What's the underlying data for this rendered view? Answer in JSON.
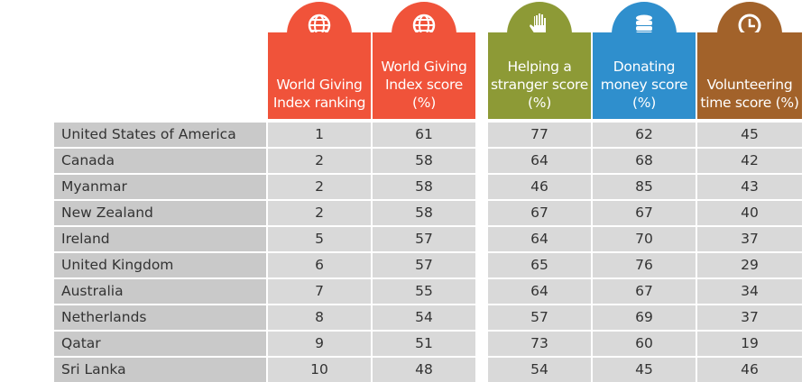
{
  "colors": {
    "ranking": "#f0533a",
    "index": "#f0533a",
    "helping": "#8d9a36",
    "donating": "#2f8fcd",
    "volunteering": "#a2622a"
  },
  "columns": [
    {
      "key": "ranking",
      "label": "World Giving Index ranking",
      "icon": "globe-icon"
    },
    {
      "key": "index",
      "label": "World Giving Index score (%)",
      "icon": "globe-icon"
    },
    {
      "key": "helping",
      "label": "Helping a stranger score (%)",
      "icon": "hand-icon"
    },
    {
      "key": "donating",
      "label": "Donating money score (%)",
      "icon": "coins-icon"
    },
    {
      "key": "volunteering",
      "label": "Volunteering time score (%)",
      "icon": "clock-icon"
    }
  ],
  "rows": [
    {
      "country": "United States of America",
      "values": [
        "1",
        "61",
        "77",
        "62",
        "45"
      ]
    },
    {
      "country": "Canada",
      "values": [
        "2",
        "58",
        "64",
        "68",
        "42"
      ]
    },
    {
      "country": "Myanmar",
      "values": [
        "2",
        "58",
        "46",
        "85",
        "43"
      ]
    },
    {
      "country": "New Zealand",
      "values": [
        "2",
        "58",
        "67",
        "67",
        "40"
      ]
    },
    {
      "country": "Ireland",
      "values": [
        "5",
        "57",
        "64",
        "70",
        "37"
      ]
    },
    {
      "country": "United Kingdom",
      "values": [
        "6",
        "57",
        "65",
        "76",
        "29"
      ]
    },
    {
      "country": "Australia",
      "values": [
        "7",
        "55",
        "64",
        "67",
        "34"
      ]
    },
    {
      "country": "Netherlands",
      "values": [
        "8",
        "54",
        "57",
        "69",
        "37"
      ]
    },
    {
      "country": "Qatar",
      "values": [
        "9",
        "51",
        "73",
        "60",
        "19"
      ]
    },
    {
      "country": "Sri Lanka",
      "values": [
        "10",
        "48",
        "54",
        "45",
        "46"
      ]
    }
  ]
}
